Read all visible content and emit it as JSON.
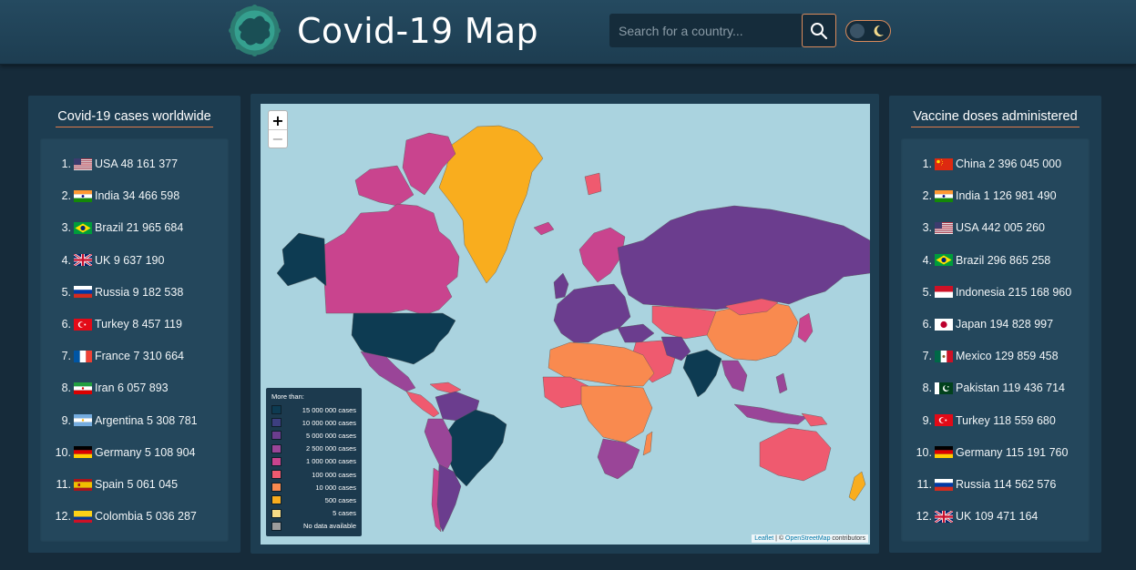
{
  "header": {
    "title": "Covid-19 Map",
    "search_placeholder": "Search for a country..."
  },
  "cases_panel": {
    "title": "Covid-19 cases worldwide",
    "items": [
      {
        "rank": "1.",
        "flag": "usa",
        "text": "USA 48 161 377"
      },
      {
        "rank": "2.",
        "flag": "india",
        "text": "India 34 466 598"
      },
      {
        "rank": "3.",
        "flag": "brazil",
        "text": "Brazil 21 965 684"
      },
      {
        "rank": "4.",
        "flag": "uk",
        "text": "UK 9 637 190"
      },
      {
        "rank": "5.",
        "flag": "russia",
        "text": "Russia 9 182 538"
      },
      {
        "rank": "6.",
        "flag": "turkey",
        "text": "Turkey 8 457 119"
      },
      {
        "rank": "7.",
        "flag": "france",
        "text": "France 7 310 664"
      },
      {
        "rank": "8.",
        "flag": "iran",
        "text": "Iran 6 057 893"
      },
      {
        "rank": "9.",
        "flag": "argentina",
        "text": "Argentina 5 308 781"
      },
      {
        "rank": "10.",
        "flag": "germany",
        "text": "Germany 5 108 904"
      },
      {
        "rank": "11.",
        "flag": "spain",
        "text": "Spain 5 061 045"
      },
      {
        "rank": "12.",
        "flag": "colombia",
        "text": "Colombia 5 036 287"
      }
    ]
  },
  "vaccine_panel": {
    "title": "Vaccine doses administered",
    "items": [
      {
        "rank": "1.",
        "flag": "china",
        "text": "China 2 396 045 000"
      },
      {
        "rank": "2.",
        "flag": "india",
        "text": "India 1 126 981 490"
      },
      {
        "rank": "3.",
        "flag": "usa",
        "text": "USA 442 005 260"
      },
      {
        "rank": "4.",
        "flag": "brazil",
        "text": "Brazil 296 865 258"
      },
      {
        "rank": "5.",
        "flag": "indonesia",
        "text": "Indonesia 215 168 960"
      },
      {
        "rank": "6.",
        "flag": "japan",
        "text": "Japan 194 828 997"
      },
      {
        "rank": "7.",
        "flag": "mexico",
        "text": "Mexico 129 859 458"
      },
      {
        "rank": "8.",
        "flag": "pakistan",
        "text": "Pakistan 119 436 714"
      },
      {
        "rank": "9.",
        "flag": "turkey",
        "text": "Turkey 118 559 680"
      },
      {
        "rank": "10.",
        "flag": "germany",
        "text": "Germany 115 191 760"
      },
      {
        "rank": "11.",
        "flag": "russia",
        "text": "Russia 114 562 576"
      },
      {
        "rank": "12.",
        "flag": "uk",
        "text": "UK 109 471 164"
      }
    ]
  },
  "map": {
    "zoom_in": "+",
    "zoom_out": "−",
    "legend": {
      "title": "More than:",
      "rows": [
        {
          "label": "15 000 000 cases",
          "color": "#0d3b52"
        },
        {
          "label": "10 000 000 cases",
          "color": "#3d3f80"
        },
        {
          "label": "5 000 000 cases",
          "color": "#6b3d8e"
        },
        {
          "label": "2 500 000 cases",
          "color": "#9a4598"
        },
        {
          "label": "1 000 000 cases",
          "color": "#c9448e"
        },
        {
          "label": "100 000 cases",
          "color": "#ef5a6f"
        },
        {
          "label": "10 000 cases",
          "color": "#f98a4f"
        },
        {
          "label": "500 cases",
          "color": "#f9ad1e"
        },
        {
          "label": "5 cases",
          "color": "#f6db86"
        },
        {
          "label": "No data available",
          "color": "#9c9c9c"
        }
      ]
    },
    "attribution_leaflet": "Leaflet",
    "attribution_sep": " | © ",
    "attribution_osm": "OpenStreetMap",
    "attribution_tail": " contributors"
  }
}
